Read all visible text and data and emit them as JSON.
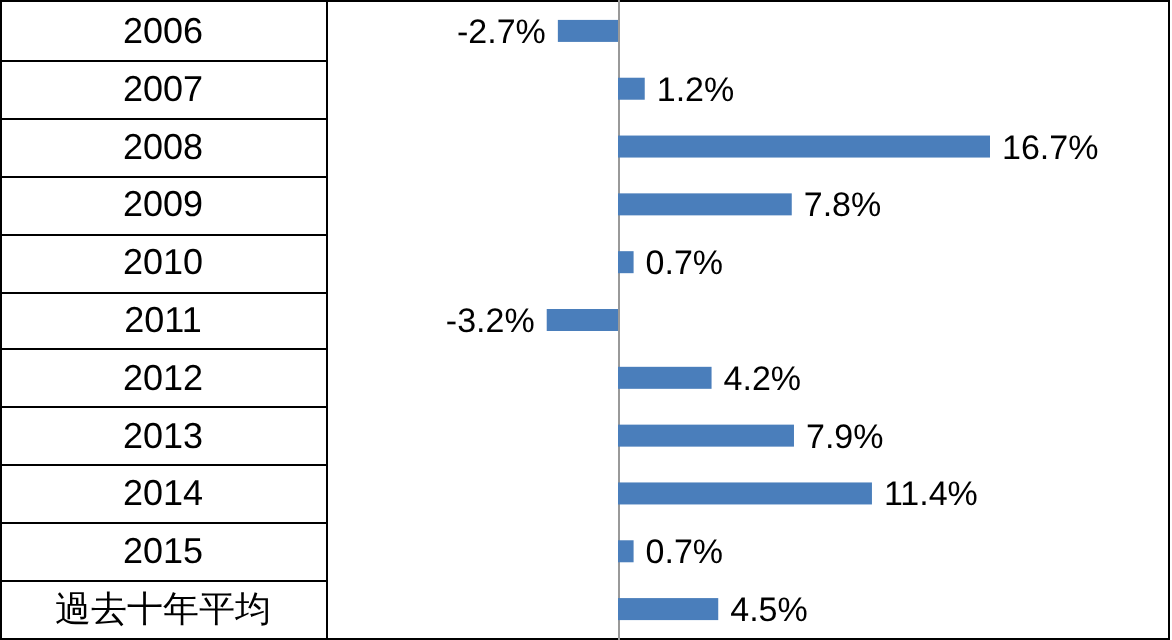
{
  "chart_data": {
    "type": "bar",
    "orientation": "horizontal",
    "categories": [
      "2006",
      "2007",
      "2008",
      "2009",
      "2010",
      "2011",
      "2012",
      "2013",
      "2014",
      "2015",
      "過去十年平均"
    ],
    "values": [
      -2.7,
      1.2,
      16.7,
      7.8,
      0.7,
      -3.2,
      4.2,
      7.9,
      11.4,
      0.7,
      4.5
    ],
    "value_labels": [
      "-2.7%",
      "1.2%",
      "16.7%",
      "7.8%",
      "0.7%",
      "-3.2%",
      "4.2%",
      "7.9%",
      "11.4%",
      "0.7%",
      "4.5%"
    ],
    "color": "#4a7ebb"
  }
}
